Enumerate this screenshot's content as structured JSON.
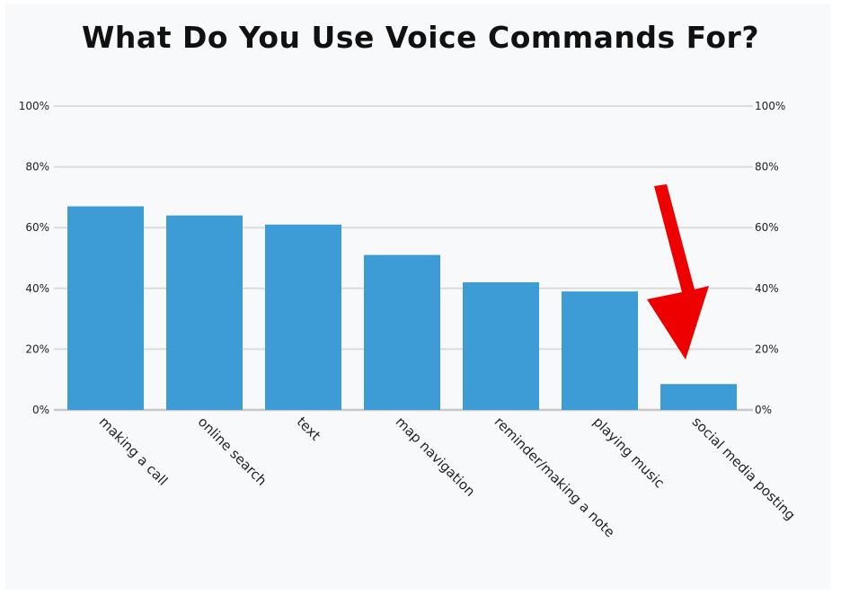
{
  "chart_data": {
    "type": "bar",
    "title": "What Do You Use Voice Commands For?",
    "categories": [
      "making a call",
      "online search",
      "text",
      "map navigation",
      "reminder/making a note",
      "playing music",
      "social media posting"
    ],
    "values": [
      67,
      64,
      61,
      51,
      42,
      39,
      8.5
    ],
    "ylim": [
      0,
      100
    ],
    "yticks": [
      "0%",
      "20%",
      "40%",
      "60%",
      "80%",
      "100%"
    ],
    "y_tick_values": [
      0,
      20,
      40,
      60,
      80,
      100
    ],
    "secondary_y_axis": true,
    "grid": true,
    "bar_color": "#3d9bd6",
    "annotation": {
      "type": "arrow",
      "color": "#ee0000",
      "points_to": "social media posting"
    }
  }
}
